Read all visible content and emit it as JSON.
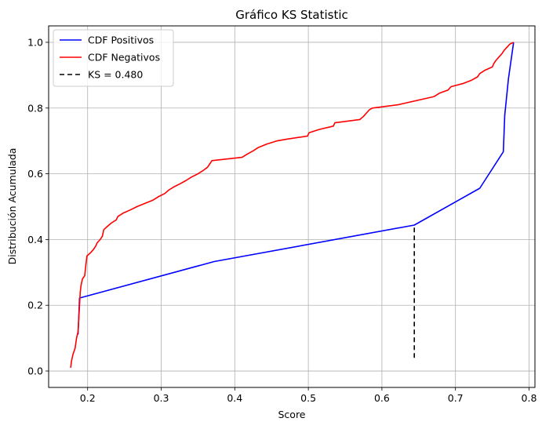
{
  "chart_data": {
    "type": "line",
    "title": "Gráfico KS Statistic",
    "xlabel": "Score",
    "ylabel": "Distribución Acumulada",
    "xlim": [
      0.147,
      0.808
    ],
    "ylim": [
      -0.05,
      1.05
    ],
    "xticks": [
      {
        "value": 0.2,
        "label": "0.2"
      },
      {
        "value": 0.3,
        "label": "0.3"
      },
      {
        "value": 0.4,
        "label": "0.4"
      },
      {
        "value": 0.5,
        "label": "0.5"
      },
      {
        "value": 0.6,
        "label": "0.6"
      },
      {
        "value": 0.7,
        "label": "0.7"
      },
      {
        "value": 0.8,
        "label": "0.8"
      }
    ],
    "yticks": [
      {
        "value": 0.0,
        "label": "0.0"
      },
      {
        "value": 0.2,
        "label": "0.2"
      },
      {
        "value": 0.4,
        "label": "0.4"
      },
      {
        "value": 0.6,
        "label": "0.6"
      },
      {
        "value": 0.8,
        "label": "0.8"
      },
      {
        "value": 1.0,
        "label": "1.0"
      }
    ],
    "grid": true,
    "legend_position": "top-left",
    "series": [
      {
        "name": "CDF Positivos",
        "color": "#0000ff",
        "style": "solid",
        "points": [
          [
            0.187,
            0.111
          ],
          [
            0.189,
            0.222
          ],
          [
            0.372,
            0.333
          ],
          [
            0.644,
            0.444
          ],
          [
            0.733,
            0.556
          ],
          [
            0.765,
            0.667
          ],
          [
            0.767,
            0.778
          ],
          [
            0.772,
            0.889
          ],
          [
            0.779,
            1.0
          ]
        ]
      },
      {
        "name": "CDF Negativos",
        "color": "#ff0000",
        "style": "solid",
        "points": [
          [
            0.177,
            0.01
          ],
          [
            0.178,
            0.03
          ],
          [
            0.18,
            0.05
          ],
          [
            0.183,
            0.07
          ],
          [
            0.185,
            0.1
          ],
          [
            0.187,
            0.12
          ],
          [
            0.188,
            0.16
          ],
          [
            0.189,
            0.2
          ],
          [
            0.19,
            0.24
          ],
          [
            0.191,
            0.26
          ],
          [
            0.193,
            0.28
          ],
          [
            0.196,
            0.29
          ],
          [
            0.197,
            0.31
          ],
          [
            0.199,
            0.35
          ],
          [
            0.204,
            0.36
          ],
          [
            0.208,
            0.37
          ],
          [
            0.211,
            0.38
          ],
          [
            0.213,
            0.39
          ],
          [
            0.217,
            0.4
          ],
          [
            0.22,
            0.41
          ],
          [
            0.222,
            0.43
          ],
          [
            0.227,
            0.44
          ],
          [
            0.232,
            0.45
          ],
          [
            0.239,
            0.46
          ],
          [
            0.241,
            0.47
          ],
          [
            0.248,
            0.48
          ],
          [
            0.258,
            0.49
          ],
          [
            0.267,
            0.5
          ],
          [
            0.278,
            0.51
          ],
          [
            0.289,
            0.52
          ],
          [
            0.296,
            0.53
          ],
          [
            0.305,
            0.54
          ],
          [
            0.31,
            0.55
          ],
          [
            0.317,
            0.56
          ],
          [
            0.326,
            0.57
          ],
          [
            0.334,
            0.58
          ],
          [
            0.341,
            0.59
          ],
          [
            0.35,
            0.6
          ],
          [
            0.357,
            0.61
          ],
          [
            0.363,
            0.62
          ],
          [
            0.366,
            0.63
          ],
          [
            0.369,
            0.64
          ],
          [
            0.41,
            0.65
          ],
          [
            0.417,
            0.66
          ],
          [
            0.425,
            0.67
          ],
          [
            0.432,
            0.68
          ],
          [
            0.443,
            0.69
          ],
          [
            0.457,
            0.7
          ],
          [
            0.47,
            0.705
          ],
          [
            0.499,
            0.715
          ],
          [
            0.501,
            0.725
          ],
          [
            0.515,
            0.735
          ],
          [
            0.534,
            0.745
          ],
          [
            0.536,
            0.755
          ],
          [
            0.57,
            0.765
          ],
          [
            0.575,
            0.775
          ],
          [
            0.579,
            0.785
          ],
          [
            0.583,
            0.795
          ],
          [
            0.587,
            0.8
          ],
          [
            0.622,
            0.81
          ],
          [
            0.671,
            0.835
          ],
          [
            0.678,
            0.845
          ],
          [
            0.69,
            0.855
          ],
          [
            0.694,
            0.865
          ],
          [
            0.711,
            0.875
          ],
          [
            0.722,
            0.885
          ],
          [
            0.73,
            0.895
          ],
          [
            0.733,
            0.905
          ],
          [
            0.74,
            0.915
          ],
          [
            0.75,
            0.925
          ],
          [
            0.752,
            0.935
          ],
          [
            0.755,
            0.945
          ],
          [
            0.759,
            0.955
          ],
          [
            0.763,
            0.965
          ],
          [
            0.766,
            0.975
          ],
          [
            0.77,
            0.985
          ],
          [
            0.774,
            0.995
          ],
          [
            0.779,
            1.0
          ]
        ]
      },
      {
        "name": "KS = 0.480",
        "color": "#000000",
        "style": "dashed",
        "points": [
          [
            0.644,
            0.04
          ],
          [
            0.644,
            0.444
          ]
        ]
      }
    ]
  }
}
